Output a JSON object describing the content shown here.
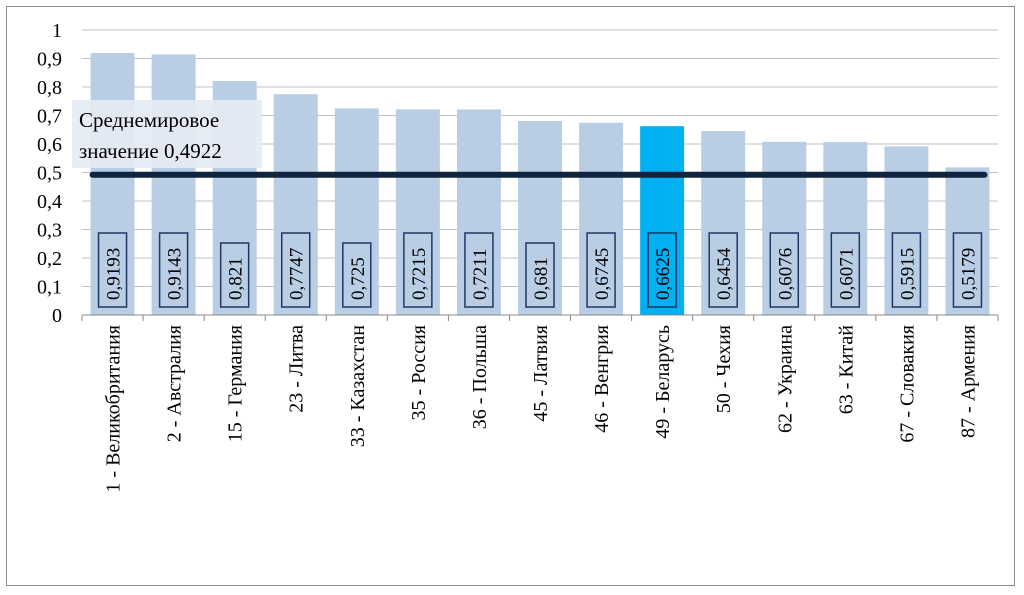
{
  "chart_data": {
    "type": "bar",
    "categories": [
      "1 - Великобритания",
      "2 - Австралия",
      "15 - Германия",
      "23 - Литва",
      "33 - Казахстан",
      "35 - Россия",
      "36 - Польша",
      "45 - Латвия",
      "46 - Венгрия",
      "49 - Беларусь",
      "50 - Чехия",
      "62 - Украина",
      "63 - Китай",
      "67 - Словакия",
      "87 - Армения"
    ],
    "values": [
      0.9193,
      0.9143,
      0.821,
      0.7747,
      0.725,
      0.7215,
      0.7211,
      0.681,
      0.6745,
      0.6625,
      0.6454,
      0.6076,
      0.6071,
      0.5915,
      0.5179
    ],
    "data_labels": [
      "0,9193",
      "0,9143",
      "0,821",
      "0,7747",
      "0,725",
      "0,7215",
      "0,7211",
      "0,681",
      "0,6745",
      "0,6625",
      "0,6454",
      "0,6076",
      "0,6071",
      "0,5915",
      "0,5179"
    ],
    "highlight_index": 9,
    "y_ticks": [
      "0",
      "0,1",
      "0,2",
      "0,3",
      "0,4",
      "0,5",
      "0,6",
      "0,7",
      "0,8",
      "0,9",
      "1"
    ],
    "ylim": [
      0,
      1
    ],
    "grid": true,
    "reference_line": {
      "value": 0.4922,
      "label_line1": "Среднемировое",
      "label_line2": "значение 0,4922"
    },
    "colors": {
      "bar": "#b9cde5",
      "highlight": "#00b0f0",
      "reference": "#10243f",
      "grid": "#c0c0c0"
    },
    "title": "",
    "xlabel": "",
    "ylabel": ""
  }
}
